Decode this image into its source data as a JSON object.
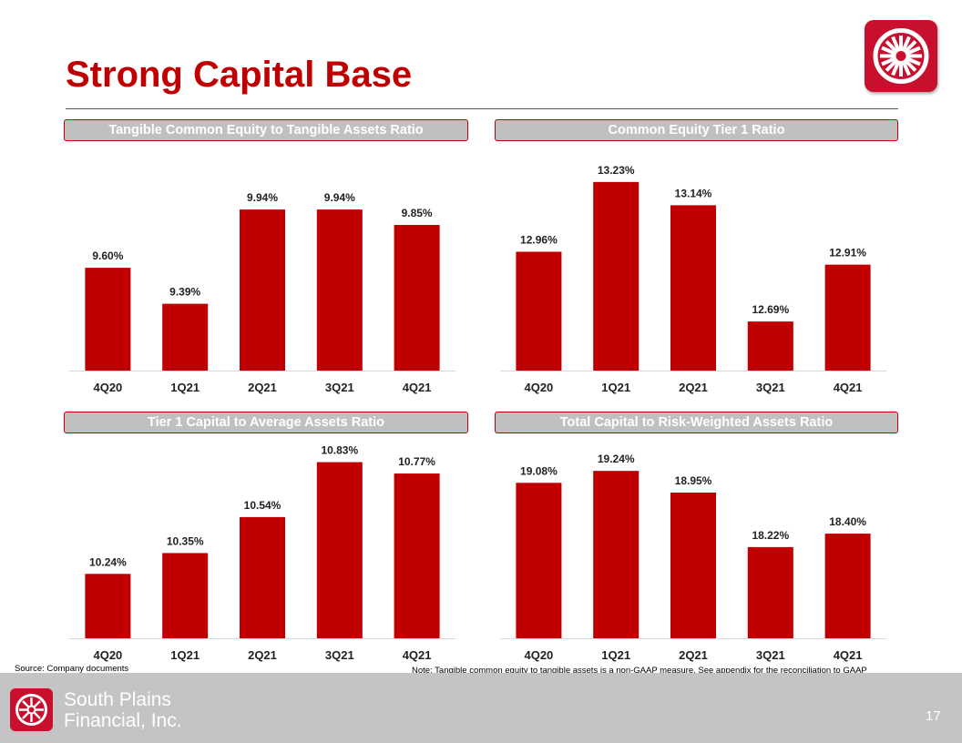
{
  "title": "Strong Capital Base",
  "brand": {
    "accent": "#c00000",
    "bar_color": "#c00000",
    "header_fill": "#c0c0c0",
    "footer_fill": "#c4c4c4"
  },
  "logo": {
    "icon": "wagon-wheel-logo-icon"
  },
  "footer": {
    "company_line1": "South Plains",
    "company_line2": "Financial, Inc.",
    "page_number": "17",
    "source": "Source: Company documents",
    "note": "Note: Tangible common equity to tangible assets is a non-GAAP measure. See appendix for the reconciliation to GAAP"
  },
  "chart_data": [
    {
      "type": "bar",
      "title": "Tangible Common Equity to Tangible Assets Ratio",
      "categories": [
        "4Q20",
        "1Q21",
        "2Q21",
        "3Q21",
        "4Q21"
      ],
      "values": [
        9.6,
        9.39,
        9.94,
        9.94,
        9.85
      ],
      "labels": [
        "9.60%",
        "9.39%",
        "9.94%",
        "9.94%",
        "9.85%"
      ],
      "ylim": [
        9.0,
        10.1
      ],
      "xlabel": "",
      "ylabel": "",
      "grid": false,
      "legend": "none"
    },
    {
      "type": "bar",
      "title": "Common Equity Tier 1 Ratio",
      "categories": [
        "4Q20",
        "1Q21",
        "2Q21",
        "3Q21",
        "4Q21"
      ],
      "values": [
        12.96,
        13.23,
        13.14,
        12.69,
        12.91
      ],
      "labels": [
        "12.96%",
        "13.23%",
        "13.14%",
        "12.69%",
        "12.91%"
      ],
      "ylim": [
        12.5,
        13.3
      ],
      "xlabel": "",
      "ylabel": "",
      "grid": false,
      "legend": "none"
    },
    {
      "type": "bar",
      "title": "Tier 1 Capital to Average Assets Ratio",
      "categories": [
        "4Q20",
        "1Q21",
        "2Q21",
        "3Q21",
        "4Q21"
      ],
      "values": [
        10.24,
        10.35,
        10.54,
        10.83,
        10.77
      ],
      "labels": [
        "10.24%",
        "10.35%",
        "10.54%",
        "10.83%",
        "10.77%"
      ],
      "ylim": [
        9.9,
        10.9
      ],
      "xlabel": "",
      "ylabel": "",
      "grid": false,
      "legend": "none"
    },
    {
      "type": "bar",
      "title": "Total Capital to Risk-Weighted Assets Ratio",
      "categories": [
        "4Q20",
        "1Q21",
        "2Q21",
        "3Q21",
        "4Q21"
      ],
      "values": [
        19.08,
        19.24,
        18.95,
        18.22,
        18.4
      ],
      "labels": [
        "19.08%",
        "19.24%",
        "18.95%",
        "18.22%",
        "18.40%"
      ],
      "ylim": [
        17.0,
        19.4
      ],
      "xlabel": "",
      "ylabel": "",
      "grid": false,
      "legend": "none"
    }
  ]
}
